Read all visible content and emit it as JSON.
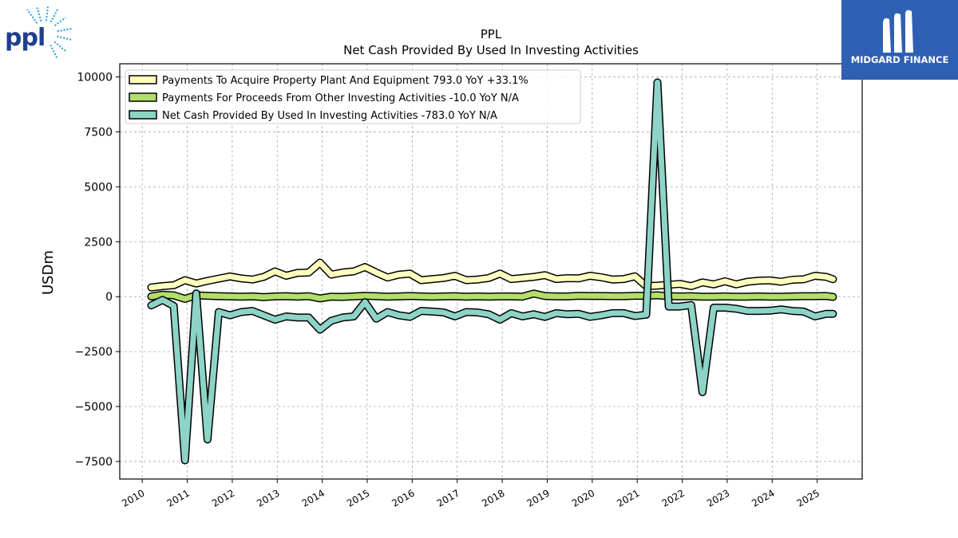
{
  "brand": {
    "company_logo_text": "ppl",
    "publisher_name": "MIDGARD FINANCE"
  },
  "chart_data": {
    "type": "line",
    "title": "PPL",
    "subtitle": "Net Cash Provided By Used In Investing Activities",
    "xlabel": "",
    "ylabel": "USDm",
    "xlim": [
      2009.5,
      2026.0
    ],
    "ylim": [
      -8300,
      10600
    ],
    "yticks": [
      -7500,
      -5000,
      -2500,
      0,
      2500,
      5000,
      7500,
      10000
    ],
    "ytick_labels": [
      "−7500",
      "−5000",
      "−2500",
      "0",
      "2500",
      "5000",
      "7500",
      "10000"
    ],
    "xticks": [
      2010,
      2011,
      2012,
      2013,
      2014,
      2015,
      2016,
      2017,
      2018,
      2019,
      2020,
      2021,
      2022,
      2023,
      2024,
      2025
    ],
    "xtick_labels": [
      "2010",
      "2011",
      "2012",
      "2013",
      "2014",
      "2015",
      "2016",
      "2017",
      "2018",
      "2019",
      "2020",
      "2021",
      "2022",
      "2023",
      "2024",
      "2025"
    ],
    "grid": true,
    "legend_position": "top-left",
    "x": [
      2010.2,
      2010.45,
      2010.7,
      2010.95,
      2011.2,
      2011.45,
      2011.7,
      2011.95,
      2012.2,
      2012.45,
      2012.7,
      2012.95,
      2013.2,
      2013.45,
      2013.7,
      2013.95,
      2014.2,
      2014.45,
      2014.7,
      2014.95,
      2015.2,
      2015.45,
      2015.7,
      2015.95,
      2016.2,
      2016.45,
      2016.7,
      2016.95,
      2017.2,
      2017.45,
      2017.7,
      2017.95,
      2018.2,
      2018.45,
      2018.7,
      2018.95,
      2019.2,
      2019.45,
      2019.7,
      2019.95,
      2020.2,
      2020.45,
      2020.7,
      2020.95,
      2021.2,
      2021.45,
      2021.7,
      2021.95,
      2022.2,
      2022.45,
      2022.7,
      2022.95,
      2023.2,
      2023.45,
      2023.7,
      2023.95,
      2024.2,
      2024.45,
      2024.7,
      2024.95,
      2025.2,
      2025.35
    ],
    "series": [
      {
        "name": "Payments To Acquire Property Plant And Equipment  793.0 YoY +33.1%",
        "color": "#ffffbf",
        "values": [
          420,
          480,
          520,
          750,
          600,
          720,
          820,
          920,
          830,
          780,
          900,
          1150,
          950,
          1080,
          1100,
          1550,
          1000,
          1100,
          1150,
          1350,
          1100,
          870,
          1000,
          1050,
          750,
          800,
          850,
          950,
          750,
          780,
          850,
          1050,
          800,
          850,
          900,
          980,
          800,
          840,
          830,
          950,
          880,
          780,
          800,
          930,
          480,
          500,
          540,
          580,
          480,
          650,
          560,
          700,
          560,
          680,
          730,
          740,
          680,
          770,
          790,
          950,
          900,
          793
        ]
      },
      {
        "name": "Payments For Proceeds From Other Investing Activities  -10.0 YoY N/A",
        "color": "#b3de69",
        "values": [
          10,
          90,
          60,
          -100,
          60,
          40,
          20,
          10,
          0,
          10,
          -20,
          10,
          20,
          0,
          20,
          -80,
          0,
          -10,
          10,
          40,
          20,
          0,
          10,
          30,
          10,
          0,
          10,
          20,
          0,
          10,
          0,
          10,
          10,
          0,
          140,
          30,
          10,
          10,
          40,
          30,
          30,
          20,
          20,
          40,
          40,
          60,
          20,
          10,
          20,
          0,
          0,
          10,
          0,
          0,
          10,
          0,
          0,
          10,
          20,
          20,
          30,
          -10
        ]
      },
      {
        "name": "Net Cash Provided By Used In Investing Activities  -783.0 YoY N/A",
        "color": "#8dd3c7",
        "values": [
          -400,
          -150,
          -420,
          -7450,
          150,
          -6500,
          -700,
          -850,
          -700,
          -650,
          -850,
          -1050,
          -900,
          -950,
          -950,
          -1500,
          -1100,
          -950,
          -900,
          -250,
          -1000,
          -700,
          -850,
          -920,
          -650,
          -680,
          -720,
          -900,
          -700,
          -720,
          -800,
          -1050,
          -750,
          -900,
          -800,
          -920,
          -750,
          -800,
          -780,
          -920,
          -850,
          -750,
          -750,
          -880,
          -820,
          9750,
          -450,
          -450,
          -380,
          -4350,
          -500,
          -500,
          -550,
          -650,
          -650,
          -640,
          -580,
          -650,
          -680,
          -900,
          -780,
          -783
        ]
      }
    ]
  }
}
